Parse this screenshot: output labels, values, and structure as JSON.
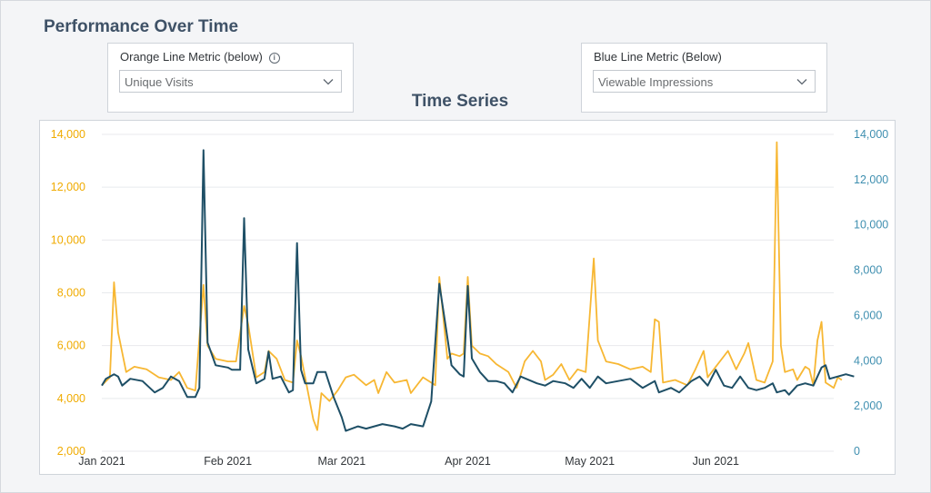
{
  "page": {
    "title": "Performance Over Time"
  },
  "filters": {
    "orange": {
      "label": "Orange Line Metric (below)",
      "info_icon": "info-icon",
      "value": "Unique Visits"
    },
    "blue": {
      "label": "Blue Line Metric (Below)",
      "value": "Viewable Impressions"
    }
  },
  "chart_title": "Time Series",
  "colors": {
    "orange_series": "#f7b733",
    "blue_series": "#1e4f66",
    "left_axis": "#f0ab00",
    "right_axis": "#3f8fb0",
    "grid": "#e8eaed"
  },
  "chart_data": {
    "type": "line",
    "title": "Time Series",
    "x_start": "2021-01-01",
    "x_end": "2021-06-30",
    "x_tick_labels": [
      "Jan 2021",
      "Feb 2021",
      "Mar 2021",
      "Apr 2021",
      "May 2021",
      "Jun 2021"
    ],
    "x_ticks": [
      "2021-01-01",
      "2021-02-01",
      "2021-03-01",
      "2021-04-01",
      "2021-05-01",
      "2021-06-01"
    ],
    "y_left": {
      "min": 2000,
      "max": 14000,
      "ticks": [
        "2,000",
        "4,000",
        "6,000",
        "8,000",
        "10,000",
        "12,000",
        "14,000"
      ]
    },
    "y_right": {
      "min": 0,
      "max": 14000,
      "ticks": [
        "0",
        "2,000",
        "4,000",
        "6,000",
        "8,000",
        "10,000",
        "12,000",
        "14,000"
      ]
    },
    "grid": true,
    "series": [
      {
        "axis": "left",
        "color": "#f7b733",
        "values": [
          [
            "2021-01-01",
            4500
          ],
          [
            "2021-01-03",
            4800
          ],
          [
            "2021-01-04",
            8400
          ],
          [
            "2021-01-05",
            6500
          ],
          [
            "2021-01-07",
            5000
          ],
          [
            "2021-01-09",
            5200
          ],
          [
            "2021-01-12",
            5100
          ],
          [
            "2021-01-15",
            4800
          ],
          [
            "2021-01-18",
            4700
          ],
          [
            "2021-01-20",
            5000
          ],
          [
            "2021-01-22",
            4400
          ],
          [
            "2021-01-24",
            4300
          ],
          [
            "2021-01-26",
            8300
          ],
          [
            "2021-01-27",
            6000
          ],
          [
            "2021-01-29",
            5500
          ],
          [
            "2021-02-01",
            5400
          ],
          [
            "2021-02-03",
            5400
          ],
          [
            "2021-02-05",
            7500
          ],
          [
            "2021-02-06",
            6800
          ],
          [
            "2021-02-08",
            4800
          ],
          [
            "2021-02-10",
            5000
          ],
          [
            "2021-02-11",
            5800
          ],
          [
            "2021-02-13",
            5500
          ],
          [
            "2021-02-15",
            4700
          ],
          [
            "2021-02-17",
            4600
          ],
          [
            "2021-02-18",
            6200
          ],
          [
            "2021-02-19",
            5600
          ],
          [
            "2021-02-21",
            4000
          ],
          [
            "2021-02-22",
            3200
          ],
          [
            "2021-02-23",
            2800
          ],
          [
            "2021-02-24",
            4200
          ],
          [
            "2021-02-26",
            3900
          ],
          [
            "2021-02-28",
            4300
          ],
          [
            "2021-03-02",
            4800
          ],
          [
            "2021-03-04",
            4900
          ],
          [
            "2021-03-07",
            4500
          ],
          [
            "2021-03-09",
            4700
          ],
          [
            "2021-03-10",
            4200
          ],
          [
            "2021-03-12",
            5000
          ],
          [
            "2021-03-14",
            4600
          ],
          [
            "2021-03-17",
            4700
          ],
          [
            "2021-03-18",
            4200
          ],
          [
            "2021-03-21",
            4800
          ],
          [
            "2021-03-24",
            4500
          ],
          [
            "2021-03-25",
            8600
          ],
          [
            "2021-03-27",
            5500
          ],
          [
            "2021-03-28",
            5700
          ],
          [
            "2021-03-30",
            5600
          ],
          [
            "2021-03-31",
            5700
          ],
          [
            "2021-04-01",
            8600
          ],
          [
            "2021-04-02",
            6000
          ],
          [
            "2021-04-04",
            5700
          ],
          [
            "2021-04-06",
            5600
          ],
          [
            "2021-04-08",
            5300
          ],
          [
            "2021-04-11",
            5000
          ],
          [
            "2021-04-13",
            4400
          ],
          [
            "2021-04-15",
            5400
          ],
          [
            "2021-04-17",
            5800
          ],
          [
            "2021-04-19",
            5400
          ],
          [
            "2021-04-20",
            4700
          ],
          [
            "2021-04-22",
            4900
          ],
          [
            "2021-04-24",
            5300
          ],
          [
            "2021-04-26",
            4700
          ],
          [
            "2021-04-28",
            5100
          ],
          [
            "2021-04-30",
            5000
          ],
          [
            "2021-05-02",
            9300
          ],
          [
            "2021-05-03",
            6200
          ],
          [
            "2021-05-05",
            5400
          ],
          [
            "2021-05-08",
            5300
          ],
          [
            "2021-05-11",
            5100
          ],
          [
            "2021-05-14",
            5200
          ],
          [
            "2021-05-16",
            5000
          ],
          [
            "2021-05-17",
            7000
          ],
          [
            "2021-05-18",
            6900
          ],
          [
            "2021-05-19",
            4600
          ],
          [
            "2021-05-22",
            4700
          ],
          [
            "2021-05-25",
            4500
          ],
          [
            "2021-05-27",
            5100
          ],
          [
            "2021-05-29",
            5800
          ],
          [
            "2021-05-30",
            4800
          ],
          [
            "2021-06-01",
            5200
          ],
          [
            "2021-06-04",
            5800
          ],
          [
            "2021-06-06",
            5100
          ],
          [
            "2021-06-08",
            5700
          ],
          [
            "2021-06-09",
            6100
          ],
          [
            "2021-06-11",
            4700
          ],
          [
            "2021-06-13",
            4600
          ],
          [
            "2021-06-15",
            5400
          ],
          [
            "2021-06-16",
            13700
          ],
          [
            "2021-06-17",
            6000
          ],
          [
            "2021-06-18",
            5000
          ],
          [
            "2021-06-20",
            5100
          ],
          [
            "2021-06-21",
            4700
          ],
          [
            "2021-06-23",
            5200
          ],
          [
            "2021-06-24",
            5100
          ],
          [
            "2021-06-25",
            4500
          ],
          [
            "2021-06-26",
            6200
          ],
          [
            "2021-06-27",
            6900
          ],
          [
            "2021-06-28",
            4600
          ],
          [
            "2021-06-29",
            4500
          ],
          [
            "2021-06-30",
            4400
          ],
          [
            "2021-07-01",
            4800
          ],
          [
            "2021-07-02",
            4700
          ]
        ]
      },
      {
        "axis": "right",
        "color": "#1e4f66",
        "values": [
          [
            "2021-01-01",
            2900
          ],
          [
            "2021-01-02",
            3200
          ],
          [
            "2021-01-04",
            3400
          ],
          [
            "2021-01-05",
            3300
          ],
          [
            "2021-01-06",
            2900
          ],
          [
            "2021-01-08",
            3200
          ],
          [
            "2021-01-11",
            3100
          ],
          [
            "2021-01-14",
            2600
          ],
          [
            "2021-01-16",
            2800
          ],
          [
            "2021-01-18",
            3300
          ],
          [
            "2021-01-20",
            3100
          ],
          [
            "2021-01-22",
            2400
          ],
          [
            "2021-01-24",
            2400
          ],
          [
            "2021-01-25",
            2800
          ],
          [
            "2021-01-26",
            13300
          ],
          [
            "2021-01-27",
            4800
          ],
          [
            "2021-01-29",
            3800
          ],
          [
            "2021-02-01",
            3700
          ],
          [
            "2021-02-02",
            3600
          ],
          [
            "2021-02-04",
            3600
          ],
          [
            "2021-02-05",
            10300
          ],
          [
            "2021-02-06",
            4500
          ],
          [
            "2021-02-08",
            3000
          ],
          [
            "2021-02-10",
            3200
          ],
          [
            "2021-02-11",
            4400
          ],
          [
            "2021-02-12",
            3200
          ],
          [
            "2021-02-14",
            3300
          ],
          [
            "2021-02-16",
            2600
          ],
          [
            "2021-02-17",
            2700
          ],
          [
            "2021-02-18",
            9200
          ],
          [
            "2021-02-19",
            3600
          ],
          [
            "2021-02-20",
            3000
          ],
          [
            "2021-02-22",
            3000
          ],
          [
            "2021-02-23",
            3500
          ],
          [
            "2021-02-25",
            3500
          ],
          [
            "2021-02-27",
            2400
          ],
          [
            "2021-03-01",
            1500
          ],
          [
            "2021-03-02",
            900
          ],
          [
            "2021-03-05",
            1100
          ],
          [
            "2021-03-07",
            1000
          ],
          [
            "2021-03-09",
            1100
          ],
          [
            "2021-03-11",
            1200
          ],
          [
            "2021-03-14",
            1100
          ],
          [
            "2021-03-16",
            1000
          ],
          [
            "2021-03-18",
            1200
          ],
          [
            "2021-03-21",
            1100
          ],
          [
            "2021-03-23",
            2200
          ],
          [
            "2021-03-25",
            7400
          ],
          [
            "2021-03-28",
            3800
          ],
          [
            "2021-03-30",
            3400
          ],
          [
            "2021-03-31",
            3300
          ],
          [
            "2021-04-01",
            7300
          ],
          [
            "2021-04-02",
            4100
          ],
          [
            "2021-04-04",
            3500
          ],
          [
            "2021-04-06",
            3100
          ],
          [
            "2021-04-08",
            3100
          ],
          [
            "2021-04-10",
            3000
          ],
          [
            "2021-04-12",
            2600
          ],
          [
            "2021-04-14",
            3300
          ],
          [
            "2021-04-18",
            3000
          ],
          [
            "2021-04-20",
            2900
          ],
          [
            "2021-04-22",
            3100
          ],
          [
            "2021-04-25",
            3000
          ],
          [
            "2021-04-27",
            2800
          ],
          [
            "2021-04-29",
            3200
          ],
          [
            "2021-05-01",
            2800
          ],
          [
            "2021-05-03",
            3300
          ],
          [
            "2021-05-05",
            3000
          ],
          [
            "2021-05-08",
            3100
          ],
          [
            "2021-05-11",
            3200
          ],
          [
            "2021-05-14",
            2800
          ],
          [
            "2021-05-17",
            3100
          ],
          [
            "2021-05-18",
            2600
          ],
          [
            "2021-05-21",
            2800
          ],
          [
            "2021-05-23",
            2600
          ],
          [
            "2021-05-26",
            3100
          ],
          [
            "2021-05-28",
            3300
          ],
          [
            "2021-05-30",
            2900
          ],
          [
            "2021-06-01",
            3600
          ],
          [
            "2021-06-03",
            2900
          ],
          [
            "2021-06-05",
            2800
          ],
          [
            "2021-06-07",
            3300
          ],
          [
            "2021-06-09",
            2800
          ],
          [
            "2021-06-11",
            2700
          ],
          [
            "2021-06-13",
            2800
          ],
          [
            "2021-06-15",
            3000
          ],
          [
            "2021-06-16",
            2600
          ],
          [
            "2021-06-18",
            2700
          ],
          [
            "2021-06-19",
            2500
          ],
          [
            "2021-06-21",
            2900
          ],
          [
            "2021-06-23",
            3000
          ],
          [
            "2021-06-25",
            2900
          ],
          [
            "2021-06-27",
            3700
          ],
          [
            "2021-06-28",
            3800
          ],
          [
            "2021-06-29",
            3200
          ],
          [
            "2021-07-01",
            3300
          ],
          [
            "2021-07-03",
            3400
          ],
          [
            "2021-07-05",
            3300
          ]
        ]
      }
    ]
  }
}
